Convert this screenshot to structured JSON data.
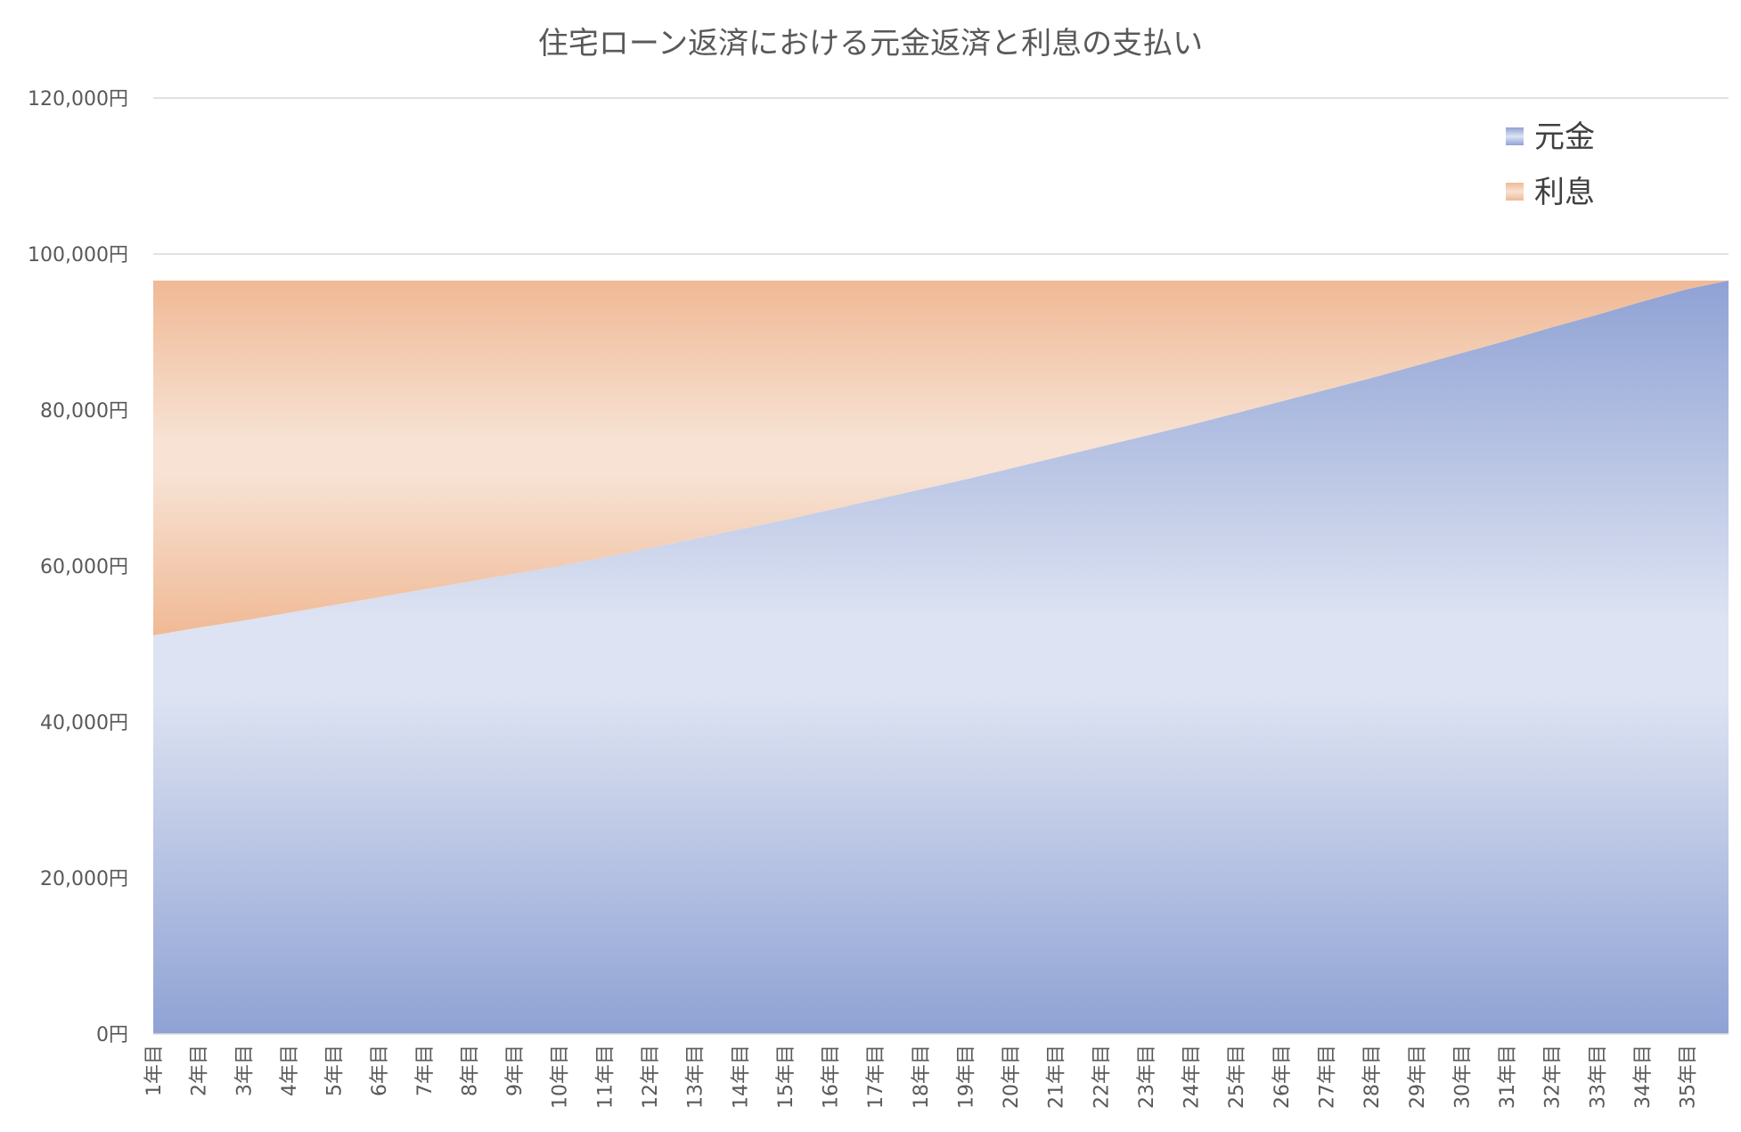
{
  "chart_data": {
    "type": "area",
    "title": "住宅ローン返済における元金返済と利息の支払い",
    "xlabel": "",
    "ylabel": "",
    "ylim": [
      0,
      120000
    ],
    "yticks": [
      0,
      20000,
      40000,
      60000,
      80000,
      100000,
      120000
    ],
    "ytick_labels": [
      "0円",
      "20,000円",
      "40,000円",
      "60,000円",
      "80,000円",
      "100,000円",
      "120,000円"
    ],
    "x_range": [
      1,
      420
    ],
    "x_unit": "month",
    "x_tick_labels": [
      "1年目",
      "2年目",
      "3年目",
      "4年目",
      "5年目",
      "6年目",
      "7年目",
      "8年目",
      "9年目",
      "10年目",
      "11年目",
      "12年目",
      "13年目",
      "14年目",
      "15年目",
      "16年目",
      "17年目",
      "18年目",
      "19年目",
      "20年目",
      "21年目",
      "22年目",
      "23年目",
      "24年目",
      "25年目",
      "26年目",
      "27年目",
      "28年目",
      "29年目",
      "30年目",
      "31年目",
      "32年目",
      "33年目",
      "34年目",
      "35年目"
    ],
    "stacked": true,
    "monthly_payment": 96600,
    "series": [
      {
        "name": "元金",
        "color": "#8fa2d4",
        "x": [
          1,
          13,
          25,
          37,
          49,
          61,
          73,
          85,
          97,
          109,
          121,
          133,
          145,
          157,
          169,
          181,
          193,
          205,
          217,
          229,
          241,
          253,
          265,
          277,
          289,
          301,
          313,
          325,
          337,
          349,
          361,
          373,
          385,
          397,
          409,
          420
        ],
        "values": [
          51100,
          52100,
          53000,
          54000,
          55000,
          56000,
          57000,
          58000,
          59000,
          60000,
          61100,
          62300,
          63500,
          64700,
          65900,
          67200,
          68500,
          69800,
          71100,
          72500,
          73900,
          75300,
          76700,
          78100,
          79600,
          81100,
          82600,
          84100,
          85700,
          87300,
          88900,
          90600,
          92200,
          93900,
          95500,
          96600
        ]
      },
      {
        "name": "利息",
        "color": "#f0b995",
        "x": [
          1,
          13,
          25,
          37,
          49,
          61,
          73,
          85,
          97,
          109,
          121,
          133,
          145,
          157,
          169,
          181,
          193,
          205,
          217,
          229,
          241,
          253,
          265,
          277,
          289,
          301,
          313,
          325,
          337,
          349,
          361,
          373,
          385,
          397,
          409,
          420
        ],
        "values": [
          45500,
          44500,
          43600,
          42600,
          41600,
          40600,
          39600,
          38600,
          37600,
          36600,
          35500,
          34300,
          33100,
          31900,
          30700,
          29400,
          28100,
          26800,
          25500,
          24100,
          22700,
          21300,
          19900,
          18500,
          17000,
          15500,
          14000,
          12500,
          10900,
          9300,
          7700,
          6000,
          4400,
          2700,
          1100,
          0
        ]
      }
    ],
    "legend_position": "top-right",
    "grid": true
  }
}
